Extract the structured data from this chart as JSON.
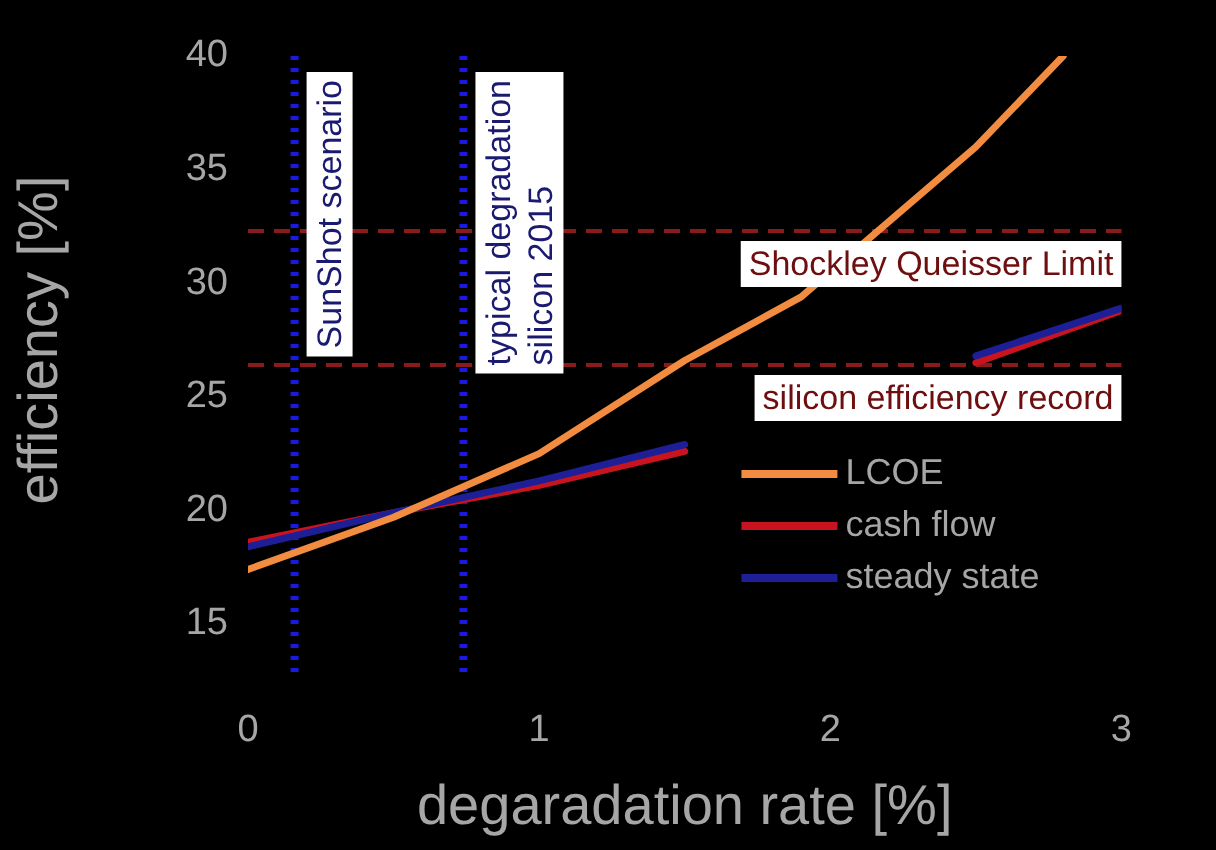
{
  "chart_data": {
    "type": "line",
    "xlabel": "degaradation rate [%]",
    "ylabel": "efficiency [%]",
    "xlim": [
      0,
      3
    ],
    "xticks": [
      0,
      1,
      2,
      3
    ],
    "ylim": [
      15,
      40
    ],
    "yticks": [
      15,
      20,
      25,
      30,
      35,
      40
    ],
    "grid": false,
    "legend": "bottom right",
    "marker": "none",
    "line_style": "solid",
    "x": [
      0,
      0.5,
      1,
      1.5,
      2,
      2.5,
      3
    ],
    "series": [
      {
        "name": "LCOE",
        "color": "#f28c40",
        "x": [
          0,
          0.5,
          1,
          1.5,
          1.9,
          2.5,
          2.8
        ],
        "values": [
          17.4,
          19.7,
          22.5,
          26.6,
          29.4,
          36.0,
          40
        ]
      },
      {
        "name": "cash flow",
        "color": "#c8141e",
        "values": [
          18.6,
          19.9,
          21.1,
          22.6,
          null,
          26.5,
          28.8
        ]
      },
      {
        "name": "steady state",
        "color": "#1e1e96",
        "values": [
          18.4,
          19.9,
          21.3,
          22.9,
          null,
          26.8,
          28.9
        ]
      }
    ],
    "ref_lines": [
      {
        "axis": "x",
        "value": 0.16,
        "label": "SunShot scenario",
        "color": "#1a1ae0",
        "line_style": "dotted"
      },
      {
        "axis": "x",
        "value": 0.74,
        "label": "typical degradation\nsilicon 2015",
        "color": "#1a1ae0",
        "line_style": "dotted"
      },
      {
        "axis": "y",
        "value": 32.3,
        "label": "Shockley Queisser Limit",
        "color": "#8b1a1a",
        "line_style": "dashed"
      },
      {
        "axis": "y",
        "value": 26.4,
        "label": "silicon efficiency record",
        "color": "#8b1a1a",
        "line_style": "dashed"
      }
    ]
  }
}
